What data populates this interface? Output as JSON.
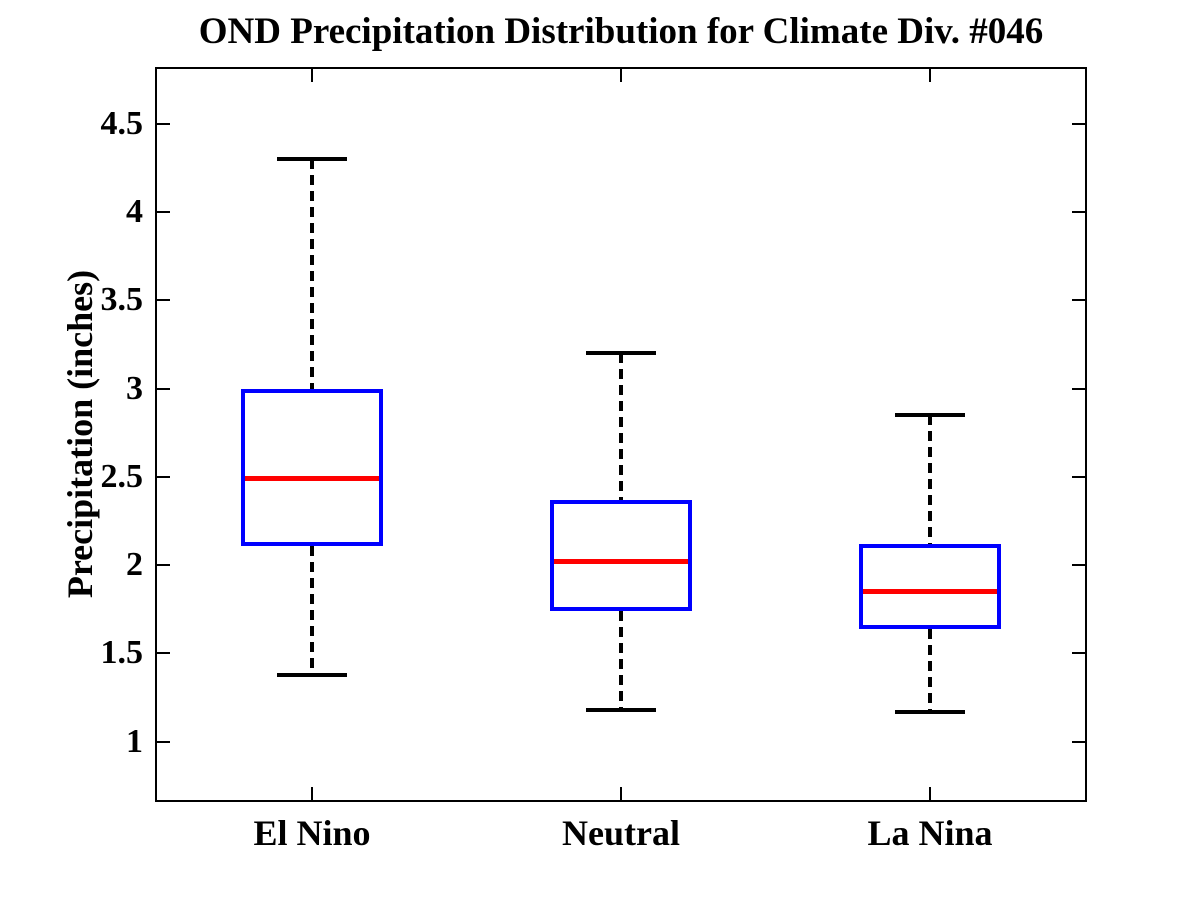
{
  "chart_data": {
    "type": "boxplot",
    "title": "OND Precipitation Distribution for Climate Div. #046",
    "ylabel": "Precipitation (inches)",
    "xlabel": "",
    "categories": [
      "El Nino",
      "Neutral",
      "La Nina"
    ],
    "series": [
      {
        "name": "El Nino",
        "whisker_low": 1.38,
        "q1": 2.11,
        "median": 2.49,
        "q3": 3.0,
        "whisker_high": 4.3
      },
      {
        "name": "Neutral",
        "whisker_low": 1.18,
        "q1": 1.74,
        "median": 2.02,
        "q3": 2.37,
        "whisker_high": 3.2
      },
      {
        "name": "La Nina",
        "whisker_low": 1.17,
        "q1": 1.64,
        "median": 1.85,
        "q3": 2.12,
        "whisker_high": 2.85
      }
    ],
    "y_ticks": [
      {
        "value": 1,
        "label": "1"
      },
      {
        "value": 1.5,
        "label": "1.5"
      },
      {
        "value": 2,
        "label": "2"
      },
      {
        "value": 2.5,
        "label": "2.5"
      },
      {
        "value": 3,
        "label": "3"
      },
      {
        "value": 3.5,
        "label": "3.5"
      },
      {
        "value": 4,
        "label": "4"
      },
      {
        "value": 4.5,
        "label": "4.5"
      }
    ],
    "ylim": [
      0.67,
      4.81
    ],
    "xlim": [
      0.5,
      3.5
    ],
    "grid": false,
    "legend": "none",
    "colors": {
      "box": "#0000ff",
      "median": "#ff0000",
      "whisker": "#000000",
      "cap": "#000000",
      "axis": "#000000",
      "background": "#ffffff"
    }
  }
}
